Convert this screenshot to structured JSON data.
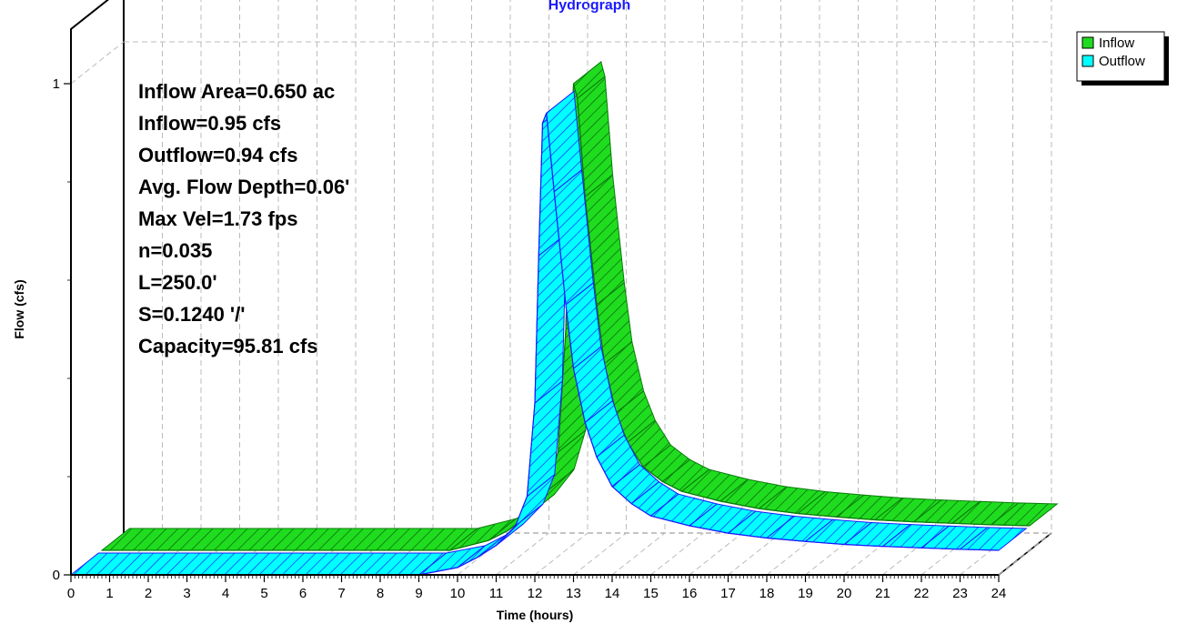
{
  "chart_data": {
    "type": "area",
    "title": "Hydrograph",
    "xlabel": "Time  (hours)",
    "ylabel": "Flow  (cfs)",
    "xlim": [
      0,
      24
    ],
    "ylim": [
      0,
      1
    ],
    "x_ticks": [
      0,
      1,
      2,
      3,
      4,
      5,
      6,
      7,
      8,
      9,
      10,
      11,
      12,
      13,
      14,
      15,
      16,
      17,
      18,
      19,
      20,
      21,
      22,
      23,
      24
    ],
    "y_ticks": [
      0,
      1
    ],
    "grid": true,
    "legend_position": "top-right",
    "series": [
      {
        "name": "Inflow",
        "color": "#1fdc1f",
        "x": [
          0,
          9,
          10,
          10.5,
          11,
          11.5,
          11.8,
          12.0,
          12.1,
          12.2,
          12.3,
          12.5,
          12.8,
          13.0,
          13.3,
          13.6,
          14,
          14.5,
          15,
          16,
          17,
          18,
          19,
          20,
          21,
          22,
          23,
          24
        ],
        "values": [
          0.0,
          0.0,
          0.02,
          0.04,
          0.07,
          0.12,
          0.2,
          0.45,
          0.75,
          0.95,
          0.92,
          0.72,
          0.5,
          0.38,
          0.28,
          0.22,
          0.17,
          0.14,
          0.12,
          0.1,
          0.085,
          0.075,
          0.068,
          0.062,
          0.058,
          0.055,
          0.052,
          0.05
        ]
      },
      {
        "name": "Outflow",
        "color": "#00ffff",
        "x": [
          0,
          9,
          10,
          10.5,
          11,
          11.5,
          11.8,
          12.0,
          12.1,
          12.2,
          12.3,
          12.5,
          12.8,
          13.0,
          13.3,
          13.6,
          14,
          14.5,
          15,
          16,
          17,
          18,
          19,
          20,
          21,
          22,
          23,
          24
        ],
        "values": [
          0.0,
          0.0,
          0.015,
          0.035,
          0.06,
          0.1,
          0.16,
          0.35,
          0.65,
          0.92,
          0.94,
          0.78,
          0.55,
          0.42,
          0.31,
          0.24,
          0.18,
          0.145,
          0.12,
          0.1,
          0.085,
          0.075,
          0.068,
          0.062,
          0.058,
          0.055,
          0.052,
          0.05
        ]
      }
    ],
    "annotations": [
      "Inflow Area=0.650 ac",
      "Inflow=0.95 cfs",
      "Outflow=0.94 cfs",
      "Avg. Flow Depth=0.06'",
      "Max Vel=1.73 fps",
      "n=0.035",
      "L=250.0'",
      "S=0.1240 '/'",
      "Capacity=95.81 cfs"
    ]
  }
}
